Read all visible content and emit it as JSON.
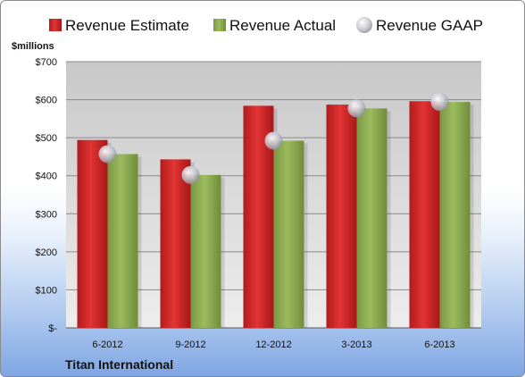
{
  "chart_data": {
    "type": "bar",
    "title": "",
    "ylabel": "$millions",
    "xlabel": "",
    "footer": "Titan International",
    "categories": [
      "6-2012",
      "9-2012",
      "12-2012",
      "3-2013",
      "6-2013"
    ],
    "series": [
      {
        "name": "Revenue Estimate",
        "type": "bar",
        "color": "#cc2222",
        "values": [
          494,
          443,
          584,
          587,
          596
        ]
      },
      {
        "name": "Revenue Actual",
        "type": "bar",
        "color": "#8aa84f",
        "values": [
          457,
          402,
          492,
          577,
          594
        ]
      },
      {
        "name": "Revenue GAAP",
        "type": "marker",
        "color": "#c8c8d2",
        "values": [
          457,
          402,
          492,
          577,
          594
        ]
      }
    ],
    "ylim": [
      0,
      700
    ],
    "yticks": [
      0,
      100,
      200,
      300,
      400,
      500,
      600,
      700
    ],
    "ytick_labels": [
      "$-",
      "$100",
      "$200",
      "$300",
      "$400",
      "$500",
      "$600",
      "$700"
    ],
    "grid": true,
    "legend_position": "top"
  }
}
